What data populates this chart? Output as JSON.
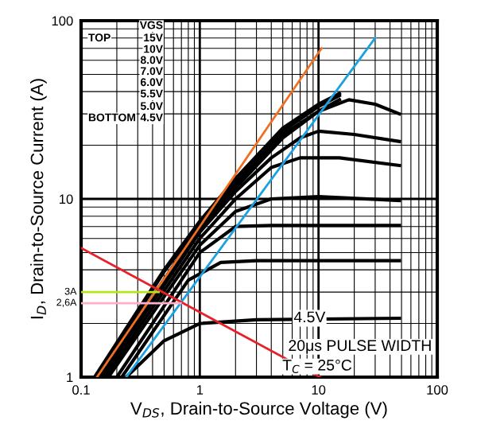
{
  "chart_data": {
    "type": "line",
    "xlabel": "V$_{DS}$, Drain-to-Source Voltage (V)",
    "ylabel": "I$_{D}$, Drain-to-Source Current (A)",
    "log": "xy",
    "xlim": [
      0.1,
      100
    ],
    "ylim": [
      1,
      100
    ],
    "xticks": [
      0.1,
      1,
      10,
      100
    ],
    "yticks": [
      1,
      10,
      100
    ],
    "grid": true,
    "marker": "none",
    "line_style": "solid",
    "series": [
      {
        "color": "#000000",
        "x": [
          0.13,
          0.5,
          1,
          2,
          5,
          10,
          15
        ],
        "values": [
          1,
          4,
          7.5,
          13,
          25,
          34,
          39
        ]
      },
      {
        "color": "#000000",
        "x": [
          0.135,
          0.5,
          1,
          2,
          5,
          10,
          15
        ],
        "values": [
          1,
          3.9,
          7.2,
          12.5,
          24,
          33,
          38
        ]
      },
      {
        "color": "#000000",
        "x": [
          0.14,
          1,
          2,
          5,
          10,
          15
        ],
        "values": [
          1,
          7,
          12,
          23,
          31,
          36
        ]
      },
      {
        "color": "#000000",
        "x": [
          0.14,
          1,
          2,
          5,
          10,
          18,
          30,
          48
        ],
        "values": [
          1,
          6.8,
          11.5,
          22,
          31,
          36,
          34,
          30
        ]
      },
      {
        "color": "#000000",
        "x": [
          0.15,
          1,
          2,
          4,
          7,
          10,
          20,
          48
        ],
        "values": [
          1,
          6.5,
          11,
          17,
          22,
          24,
          23,
          21
        ]
      },
      {
        "color": "#000000",
        "x": [
          0.16,
          1,
          2,
          4,
          7,
          15,
          48
        ],
        "values": [
          1,
          6,
          10,
          15,
          17,
          17,
          15.4
        ]
      },
      {
        "color": "#000000",
        "x": [
          0.17,
          1,
          2,
          4,
          10,
          48
        ],
        "values": [
          1,
          5.5,
          8.5,
          10,
          10.3,
          9.8
        ]
      },
      {
        "color": "#000000",
        "x": [
          0.2,
          1,
          2,
          4,
          48
        ],
        "values": [
          1,
          5,
          7,
          7.1,
          7.1
        ]
      },
      {
        "color": "#000000",
        "x": [
          0.22,
          0.8,
          1.5,
          3,
          48
        ],
        "values": [
          1,
          3.5,
          4.4,
          4.5,
          4.5
        ]
      },
      {
        "name": "4.5V",
        "color": "#000000",
        "x": [
          0.24,
          0.5,
          1,
          3,
          48
        ],
        "values": [
          1,
          1.6,
          2,
          2.1,
          2.14
        ]
      },
      {
        "color": "#f07020",
        "x": [
          0.136,
          10.6
        ],
        "values": [
          1,
          70
        ]
      },
      {
        "color": "#1ba1e2",
        "x": [
          0.24,
          30
        ],
        "values": [
          1,
          80
        ]
      },
      {
        "color": "#e8202a",
        "x": [
          0.1,
          10.3
        ],
        "values": [
          5.3,
          1
        ]
      },
      {
        "color": "#b5e61d",
        "x": [
          0.1,
          0.45
        ],
        "values": [
          3,
          3
        ]
      },
      {
        "color": "#ffaec9",
        "x": [
          0.1,
          0.69
        ],
        "values": [
          2.6,
          2.6
        ]
      }
    ],
    "annotations": [
      "VGS",
      "15V",
      "10V",
      "8.0V",
      "7.0V",
      "6.0V",
      "5.5V",
      "5.0V",
      "4.5V",
      "TOP",
      "BOTTOM",
      "20μs PULSE WIDTH",
      "T$_{C}$ = 25°C",
      {
        "text": "3A",
        "x": 0.1,
        "y": 3
      },
      {
        "text": "2,6A",
        "x": 0.1,
        "y": 2.6
      }
    ]
  }
}
